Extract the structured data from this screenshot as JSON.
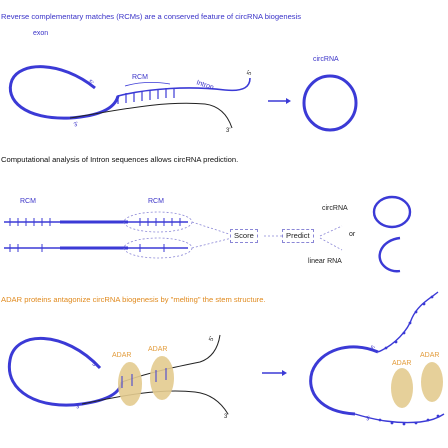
{
  "captions": {
    "section1": "Reverse complementary matches (RCMs)  are a conserved feature of circRNA biogenesis",
    "section2": "Computational analysis of Intron sequences allows circRNA prediction.",
    "section3": "ADAR proteins antagonize circRNA biogenesis by \"melting\" the stem structure."
  },
  "labels": {
    "exon": "exon",
    "rcm": "RCM",
    "intron": "Intron",
    "circrna": "circRNA",
    "five_prime": "5'",
    "three_prime": "3'",
    "score": "Score",
    "predict": "Predict",
    "or": "or",
    "linear_rna": "linear RNA",
    "adar": "ADAR"
  },
  "colors": {
    "rna_blue": "#3b3ad6",
    "text_blue": "#3a33c8",
    "adar_fill": "#e3cb8f",
    "adar_text": "#e29b3a",
    "caption_orange": "#e08a1e",
    "strand_dark": "#222222"
  }
}
